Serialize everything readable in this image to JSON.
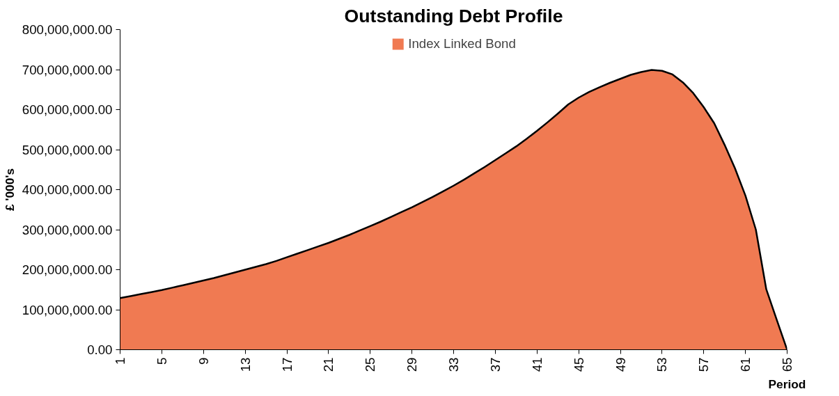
{
  "chart_data": {
    "type": "area",
    "title": "Outstanding Debt Profile",
    "xlabel": "Period",
    "ylabel": "£ '000's",
    "x": [
      1,
      2,
      3,
      4,
      5,
      6,
      7,
      8,
      9,
      10,
      11,
      12,
      13,
      14,
      15,
      16,
      17,
      18,
      19,
      20,
      21,
      22,
      23,
      24,
      25,
      26,
      27,
      28,
      29,
      30,
      31,
      32,
      33,
      34,
      35,
      36,
      37,
      38,
      39,
      40,
      41,
      42,
      43,
      44,
      45,
      46,
      47,
      48,
      49,
      50,
      51,
      52,
      53,
      54,
      55,
      56,
      57,
      58,
      59,
      60,
      61,
      62,
      63,
      64,
      65
    ],
    "series": [
      {
        "name": "Index Linked Bond",
        "color": "#f07a52",
        "values": [
          129000000,
          134000000,
          139000000,
          144000000,
          149000000,
          155000000,
          161000000,
          167000000,
          173000000,
          179000000,
          186000000,
          193000000,
          200000000,
          207000000,
          214000000,
          222000000,
          231000000,
          240000000,
          249000000,
          258000000,
          267000000,
          277000000,
          287000000,
          298000000,
          309000000,
          320000000,
          332000000,
          344000000,
          356000000,
          369000000,
          382000000,
          396000000,
          410000000,
          425000000,
          441000000,
          457000000,
          474000000,
          491000000,
          508000000,
          527000000,
          547000000,
          568000000,
          590000000,
          613000000,
          630000000,
          644000000,
          656000000,
          667000000,
          677000000,
          687000000,
          694000000,
          699000000,
          697000000,
          688000000,
          668000000,
          641000000,
          606000000,
          566000000,
          512000000,
          453000000,
          385000000,
          300000000,
          151000000,
          75000000,
          0
        ]
      }
    ],
    "xlim": [
      1,
      65
    ],
    "xticks": [
      1,
      5,
      9,
      13,
      17,
      21,
      25,
      29,
      33,
      37,
      41,
      45,
      49,
      53,
      57,
      61,
      65
    ],
    "ylim": [
      0,
      800000000
    ],
    "yticks": [
      {
        "value": 0,
        "label": "0.00"
      },
      {
        "value": 100000000,
        "label": "100,000,000.00"
      },
      {
        "value": 200000000,
        "label": "200,000,000.00"
      },
      {
        "value": 300000000,
        "label": "300,000,000.00"
      },
      {
        "value": 400000000,
        "label": "400,000,000.00"
      },
      {
        "value": 500000000,
        "label": "500,000,000.00"
      },
      {
        "value": 600000000,
        "label": "600,000,000.00"
      },
      {
        "value": 700000000,
        "label": "700,000,000.00"
      },
      {
        "value": 800000000,
        "label": "800,000,000.00"
      }
    ],
    "legend": "top",
    "grid": false
  }
}
